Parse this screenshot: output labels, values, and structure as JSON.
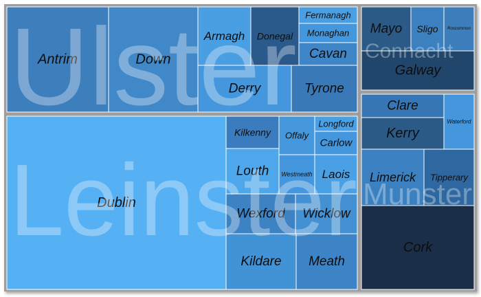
{
  "chart_data": {
    "type": "treemap",
    "title": "",
    "group_by": "province",
    "provinces": [
      {
        "name": "Ulster",
        "counties": [
          {
            "name": "Antrim",
            "color": "#3d7ebd"
          },
          {
            "name": "Down",
            "color": "#4188c8"
          },
          {
            "name": "Armagh",
            "color": "#4a9ee2"
          },
          {
            "name": "Donegal",
            "color": "#2a5a8c"
          },
          {
            "name": "Fermanagh",
            "color": "#4a9ee2"
          },
          {
            "name": "Monaghan",
            "color": "#4597dd"
          },
          {
            "name": "Cavan",
            "color": "#3e86c7"
          },
          {
            "name": "Derry",
            "color": "#4597dd"
          },
          {
            "name": "Tyrone",
            "color": "#3a79b7"
          }
        ]
      },
      {
        "name": "Connacht",
        "counties": [
          {
            "name": "Mayo",
            "color": "#2b5a87"
          },
          {
            "name": "Sligo",
            "color": "#3d80c0"
          },
          {
            "name": "Roscommon",
            "color": "#3c7dbc"
          },
          {
            "name": "Galway",
            "color": "#21466c"
          }
        ]
      },
      {
        "name": "Leinster",
        "counties": [
          {
            "name": "Dublin",
            "color": "#56b0f4"
          },
          {
            "name": "Kilkenny",
            "color": "#3a7cbd"
          },
          {
            "name": "Offaly",
            "color": "#4598dc"
          },
          {
            "name": "Longford",
            "color": "#4aa0e4"
          },
          {
            "name": "Carlow",
            "color": "#4597dd"
          },
          {
            "name": "Louth",
            "color": "#4ea7eb"
          },
          {
            "name": "Westmeath",
            "color": "#4597dd"
          },
          {
            "name": "Laois",
            "color": "#4aa0e4"
          },
          {
            "name": "Wexford",
            "color": "#3d82c3"
          },
          {
            "name": "Wicklow",
            "color": "#4390d2"
          },
          {
            "name": "Kildare",
            "color": "#4292d6"
          },
          {
            "name": "Meath",
            "color": "#3d84c6"
          }
        ]
      },
      {
        "name": "Munster",
        "counties": [
          {
            "name": "Clare",
            "color": "#3676b5"
          },
          {
            "name": "Waterford",
            "color": "#4597dd"
          },
          {
            "name": "Kerry",
            "color": "#2b5a87"
          },
          {
            "name": "Limerick",
            "color": "#3b80c0"
          },
          {
            "name": "Tipperary",
            "color": "#2f68a0"
          },
          {
            "name": "Cork",
            "color": "#1b2e48"
          }
        ]
      }
    ]
  }
}
